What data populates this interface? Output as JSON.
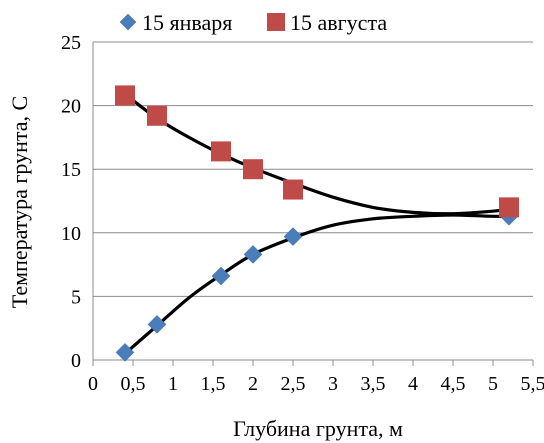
{
  "chart_data": {
    "type": "scatter",
    "title": "",
    "xlabel": "Глубина грунта, м",
    "ylabel": "Температура грунта, С",
    "xlim": [
      0,
      5.5
    ],
    "ylim": [
      0,
      25
    ],
    "xticks": [
      "0",
      "0,5",
      "1",
      "1,5",
      "2",
      "2,5",
      "3",
      "3,5",
      "4",
      "4,5",
      "5",
      "5,5"
    ],
    "yticks": [
      "0",
      "5",
      "10",
      "15",
      "20",
      "25"
    ],
    "grid": "horizontal",
    "legend_position": "top",
    "series": [
      {
        "name": "15 января",
        "marker": "diamond",
        "color": "#4a7ebb",
        "points": [
          [
            0.4,
            0.6
          ],
          [
            0.8,
            2.8
          ],
          [
            1.6,
            6.6
          ],
          [
            2.0,
            8.3
          ],
          [
            2.5,
            9.7
          ],
          [
            5.2,
            11.3
          ]
        ],
        "trend": [
          [
            0.4,
            0.5
          ],
          [
            0.8,
            2.7
          ],
          [
            1.2,
            4.9
          ],
          [
            1.6,
            6.7
          ],
          [
            2.0,
            8.3
          ],
          [
            2.5,
            9.6
          ],
          [
            3.0,
            10.6
          ],
          [
            3.5,
            11.1
          ],
          [
            4.0,
            11.3
          ],
          [
            4.5,
            11.4
          ],
          [
            5.0,
            11.3
          ],
          [
            5.2,
            11.3
          ]
        ]
      },
      {
        "name": "15 августа",
        "marker": "square",
        "color": "#be4b48",
        "points": [
          [
            0.4,
            20.8
          ],
          [
            0.8,
            19.2
          ],
          [
            1.6,
            16.4
          ],
          [
            2.0,
            15.0
          ],
          [
            2.5,
            13.4
          ],
          [
            5.2,
            12.0
          ]
        ],
        "trend": [
          [
            0.4,
            20.9
          ],
          [
            0.8,
            19.0
          ],
          [
            1.2,
            17.5
          ],
          [
            1.6,
            16.2
          ],
          [
            2.0,
            15.1
          ],
          [
            2.5,
            13.9
          ],
          [
            3.0,
            12.8
          ],
          [
            3.5,
            12.0
          ],
          [
            4.0,
            11.6
          ],
          [
            4.5,
            11.5
          ],
          [
            5.0,
            11.7
          ],
          [
            5.2,
            11.9
          ]
        ]
      }
    ]
  }
}
